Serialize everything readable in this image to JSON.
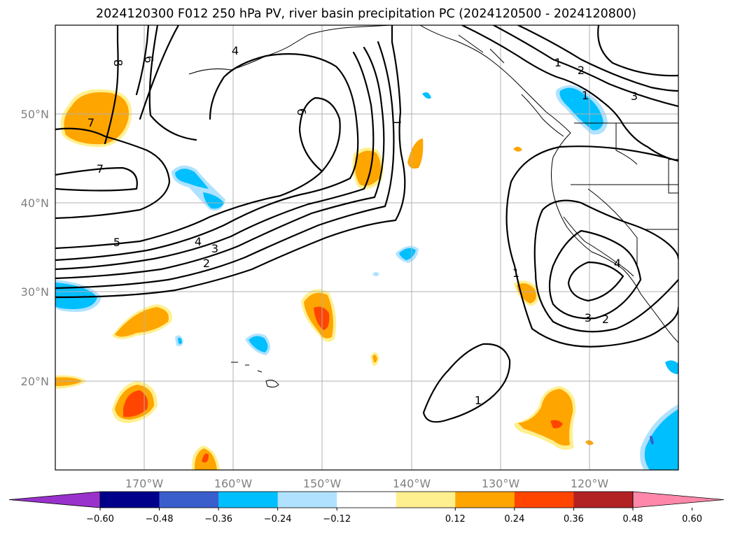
{
  "title": "2024120300 F012 250 hPa PV, river basin precipitation PC (2024120500 - 2024120800)",
  "lon_ticks": [
    "170°W",
    "160°W",
    "150°W",
    "140°W",
    "130°W",
    "120°W"
  ],
  "lat_ticks": [
    "50°N",
    "40°N",
    "30°N",
    "20°N"
  ],
  "colorbar": {
    "tick_labels": [
      "−0.60",
      "−0.48",
      "−0.36",
      "−0.24",
      "−0.12",
      "0.12",
      "0.24",
      "0.36",
      "0.48",
      "0.60"
    ],
    "colors": [
      "#9932cc",
      "#00008b",
      "#3a5fcd",
      "#00bfff",
      "#b0e2ff",
      "#ffffff",
      "#fff08f",
      "#ffa500",
      "#ff4500",
      "#b22222",
      "#ff88aa"
    ]
  },
  "contour_labels": [
    {
      "id": "pv-8",
      "text": "8"
    },
    {
      "id": "pv-6-north",
      "text": "6"
    },
    {
      "id": "pv-4-north",
      "text": "4"
    },
    {
      "id": "pv-7-west",
      "text": "7"
    },
    {
      "id": "pv-7-center",
      "text": "7"
    },
    {
      "id": "pv-6-center",
      "text": "6"
    },
    {
      "id": "pv-5",
      "text": "5"
    },
    {
      "id": "pv-4",
      "text": "4"
    },
    {
      "id": "pv-3",
      "text": "3"
    },
    {
      "id": "pv-2",
      "text": "2"
    },
    {
      "id": "pv-1-center",
      "text": "1"
    },
    {
      "id": "pv-1-ne",
      "text": "1"
    },
    {
      "id": "pv-2-ne",
      "text": "2"
    },
    {
      "id": "pv-1-bc",
      "text": "1"
    },
    {
      "id": "pv-3-ne",
      "text": "3"
    },
    {
      "id": "pv-1-coast",
      "text": "1"
    },
    {
      "id": "pv-4-low",
      "text": "4"
    },
    {
      "id": "pv-3-low",
      "text": "3"
    },
    {
      "id": "pv-2-low",
      "text": "2"
    },
    {
      "id": "pv-1-south",
      "text": "1"
    }
  ],
  "map_data": {
    "type": "contour-map",
    "projection": "PlateCarree",
    "lon_range": [
      -180,
      -110
    ],
    "lat_range": [
      10,
      60
    ],
    "gridlines": true,
    "contour_field": "250 hPa PV",
    "filled_field": "river basin precipitation PC"
  }
}
